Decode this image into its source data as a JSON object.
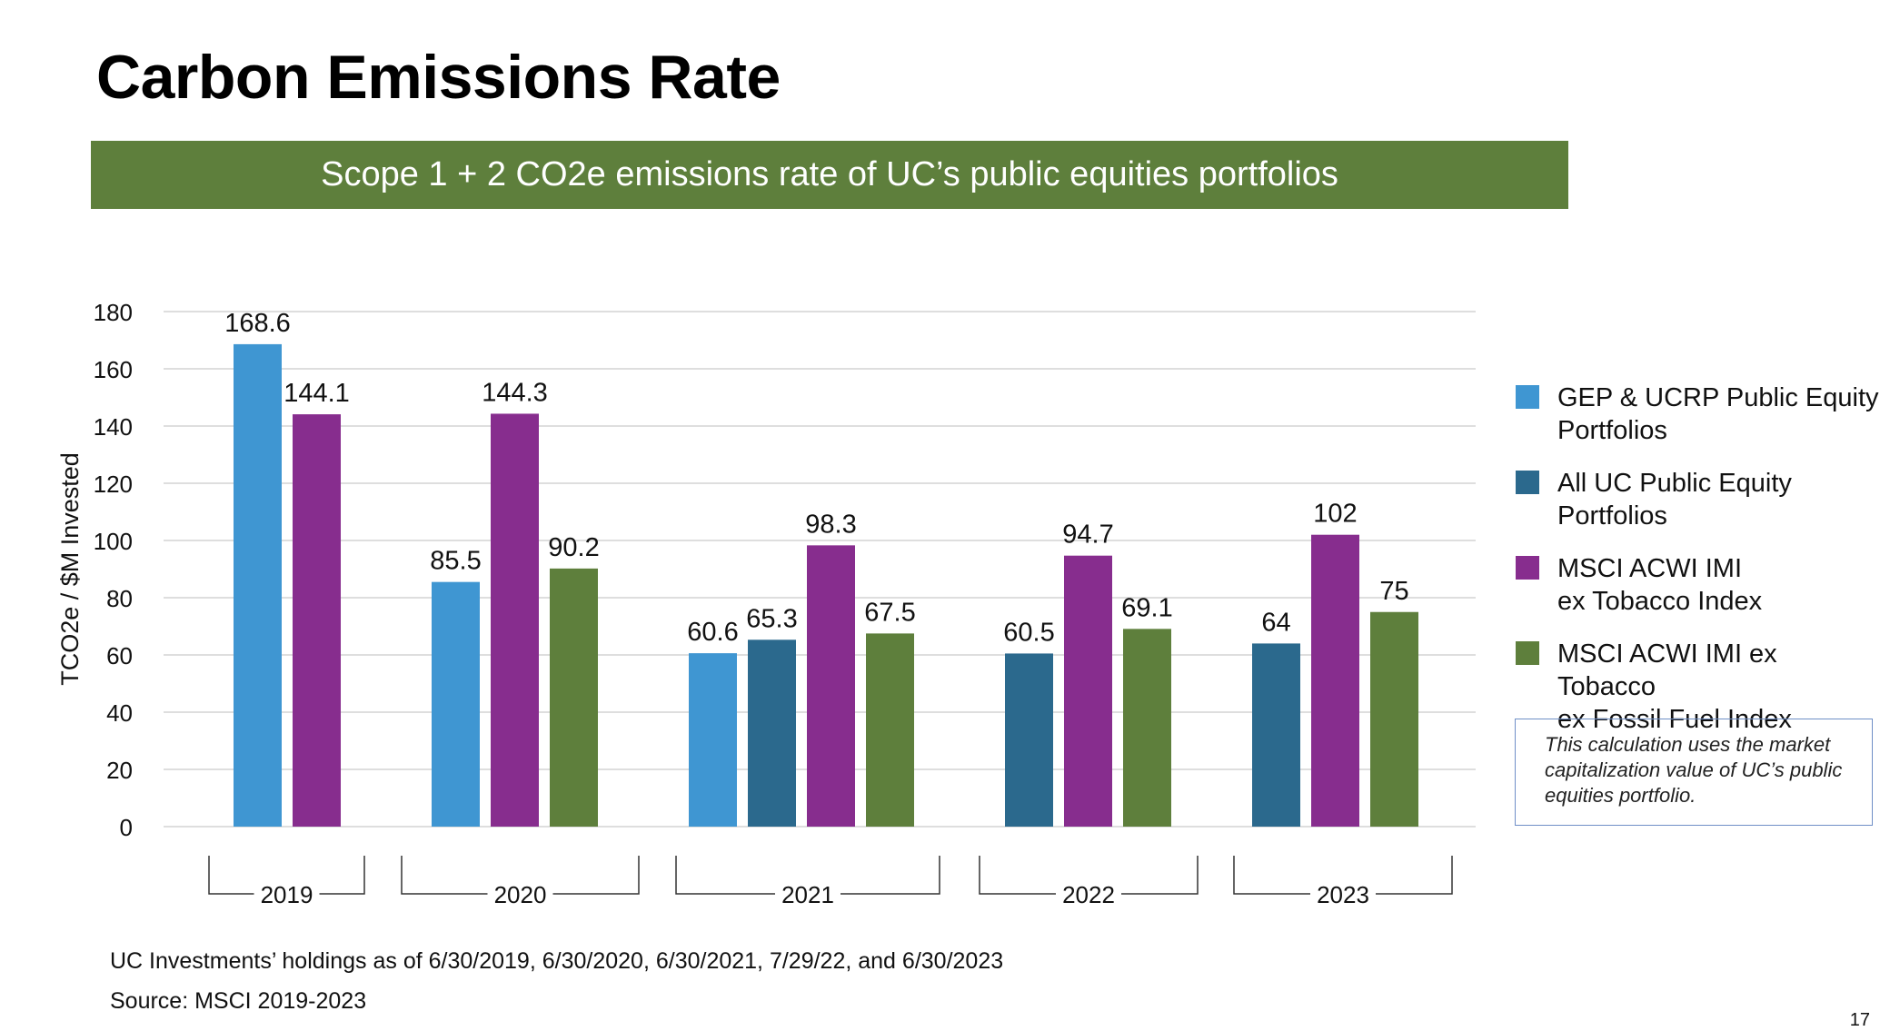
{
  "title": "Carbon Emissions Rate",
  "banner": "Scope 1 + 2 CO2e emissions rate of UC’s public equities portfolios",
  "footnotes": {
    "holdings": "UC Investments’ holdings as of 6/30/2019, 6/30/2020, 6/30/2021, 7/29/22, and 6/30/2023",
    "source": "Source: MSCI 2019-2023"
  },
  "note": "This calculation uses the market capitalization value of UC’s public equities portfolio.",
  "page_number": "17",
  "legend": [
    {
      "label": "GEP & UCRP Public Equity\nPortfolios",
      "color": "#3f96d2"
    },
    {
      "label": "All UC Public Equity\nPortfolios",
      "color": "#2b698d"
    },
    {
      "label": "MSCI ACWI IMI\nex Tobacco Index",
      "color": "#872d8e"
    },
    {
      "label": "MSCI ACWI IMI ex Tobacco\nex Fossil Fuel Index",
      "color": "#5e7f3c"
    }
  ],
  "chart_data": {
    "type": "bar",
    "ylabel": "TCO2e / $M Invested",
    "ylim": [
      0,
      180
    ],
    "yticks": [
      0,
      20,
      40,
      60,
      80,
      100,
      120,
      140,
      160,
      180
    ],
    "grid": true,
    "legend_position": "right",
    "categories": [
      "2019",
      "2020",
      "2021",
      "2022",
      "2023"
    ],
    "series": [
      {
        "name": "GEP & UCRP Public Equity Portfolios",
        "color": "#3f96d2",
        "values": [
          168.6,
          85.5,
          60.6,
          null,
          null
        ]
      },
      {
        "name": "All UC Public Equity Portfolios",
        "color": "#2b698d",
        "values": [
          null,
          null,
          65.3,
          60.5,
          64
        ]
      },
      {
        "name": "MSCI ACWI IMI ex Tobacco Index",
        "color": "#872d8e",
        "values": [
          144.1,
          144.3,
          98.3,
          94.7,
          102
        ]
      },
      {
        "name": "MSCI ACWI IMI ex Tobacco ex Fossil Fuel Index",
        "color": "#5e7f3c",
        "values": [
          null,
          90.2,
          67.5,
          69.1,
          75
        ]
      }
    ]
  }
}
